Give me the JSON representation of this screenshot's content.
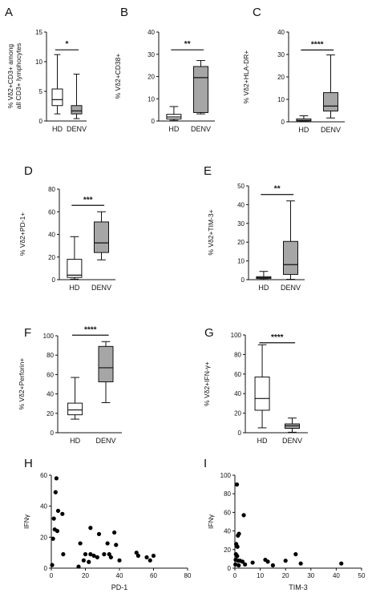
{
  "colors": {
    "hd_box": "#ffffff",
    "denv_box": "#a6a6a6",
    "stroke": "#111111",
    "point": "#000000"
  },
  "chart_data": [
    {
      "panel": "A",
      "type": "boxplot",
      "ylabel": "% Vδ2+CD3+ among all CD3+ lymphocytes",
      "ylim": [
        0,
        15
      ],
      "yticks": [
        0,
        5,
        10,
        15
      ],
      "categories": [
        "HD",
        "DENV"
      ],
      "boxes": [
        {
          "name": "HD",
          "min": 1.2,
          "q1": 2.6,
          "median": 3.6,
          "q3": 5.4,
          "max": 11.2
        },
        {
          "name": "DENV",
          "min": 0.4,
          "q1": 1.2,
          "median": 1.7,
          "q3": 2.6,
          "max": 7.9
        }
      ],
      "significance": "*"
    },
    {
      "panel": "B",
      "type": "boxplot",
      "ylabel": "% Vδ2+CD38+",
      "ylim": [
        0,
        40
      ],
      "yticks": [
        0,
        10,
        20,
        30,
        40
      ],
      "categories": [
        "HD",
        "DENV"
      ],
      "boxes": [
        {
          "name": "HD",
          "min": 0.3,
          "q1": 0.9,
          "median": 1.8,
          "q3": 3,
          "max": 6.5
        },
        {
          "name": "DENV",
          "min": 3.2,
          "q1": 3.8,
          "median": 19.5,
          "q3": 24.5,
          "max": 27.2
        }
      ],
      "significance": "**"
    },
    {
      "panel": "C",
      "type": "boxplot",
      "ylabel": "% Vδ2+HLA-DR+",
      "ylim": [
        0,
        40
      ],
      "yticks": [
        0,
        10,
        20,
        30,
        40
      ],
      "categories": [
        "HD",
        "DENV"
      ],
      "boxes": [
        {
          "name": "HD",
          "min": 0.2,
          "q1": 0.4,
          "median": 0.7,
          "q3": 1.3,
          "max": 2.7
        },
        {
          "name": "DENV",
          "min": 1.7,
          "q1": 4.8,
          "median": 7,
          "q3": 13,
          "max": 29.8
        }
      ],
      "significance": "****"
    },
    {
      "panel": "D",
      "type": "boxplot",
      "ylabel": "% Vδ2+PD-1+",
      "ylim": [
        0,
        80
      ],
      "yticks": [
        0,
        20,
        40,
        60,
        80
      ],
      "categories": [
        "HD",
        "DENV"
      ],
      "boxes": [
        {
          "name": "HD",
          "min": 0.5,
          "q1": 2,
          "median": 4,
          "q3": 18,
          "max": 38
        },
        {
          "name": "DENV",
          "min": 17.5,
          "q1": 24,
          "median": 32.5,
          "q3": 51,
          "max": 60
        }
      ],
      "significance": "***"
    },
    {
      "panel": "E",
      "type": "boxplot",
      "ylabel": "% Vδ2+TIM-3+",
      "ylim": [
        0,
        50
      ],
      "yticks": [
        0,
        10,
        20,
        30,
        40,
        50
      ],
      "categories": [
        "HD",
        "DENV"
      ],
      "boxes": [
        {
          "name": "HD",
          "min": 0.1,
          "q1": 0.6,
          "median": 1.1,
          "q3": 1.6,
          "max": 4.4
        },
        {
          "name": "DENV",
          "min": 0.2,
          "q1": 2.8,
          "median": 8,
          "q3": 20.4,
          "max": 42
        }
      ],
      "significance": "**"
    },
    {
      "panel": "F",
      "type": "boxplot",
      "ylabel": "% Vδ2+Perforin+",
      "ylim": [
        0,
        100
      ],
      "yticks": [
        0,
        20,
        40,
        60,
        80,
        100
      ],
      "categories": [
        "HD",
        "DENV"
      ],
      "boxes": [
        {
          "name": "HD",
          "min": 14,
          "q1": 18.5,
          "median": 23.5,
          "q3": 30.5,
          "max": 57
        },
        {
          "name": "DENV",
          "min": 31,
          "q1": 52.5,
          "median": 67,
          "q3": 89,
          "max": 94
        }
      ],
      "significance": "****"
    },
    {
      "panel": "G",
      "type": "boxplot",
      "ylabel": "% Vδ2+IFN-γ+",
      "ylim": [
        0,
        100
      ],
      "yticks": [
        0,
        20,
        40,
        60,
        80,
        100
      ],
      "categories": [
        "HD",
        "DENV"
      ],
      "boxes": [
        {
          "name": "HD",
          "min": 5,
          "q1": 23,
          "median": 35,
          "q3": 57,
          "max": 90
        },
        {
          "name": "DENV",
          "min": 0.5,
          "q1": 4.5,
          "median": 7,
          "q3": 9,
          "max": 15
        }
      ],
      "significance": "****"
    },
    {
      "panel": "H",
      "type": "scatter",
      "xlabel": "PD-1",
      "ylabel": "IFNγ",
      "xlim": [
        0,
        80
      ],
      "ylim": [
        0,
        60
      ],
      "xticks": [
        0,
        20,
        40,
        60,
        80
      ],
      "yticks": [
        0,
        20,
        40,
        60
      ],
      "points": [
        {
          "x": 1.5,
          "y": 32
        },
        {
          "x": 3,
          "y": 58
        },
        {
          "x": 2.5,
          "y": 49
        },
        {
          "x": 4,
          "y": 37
        },
        {
          "x": 6.5,
          "y": 35
        },
        {
          "x": 2,
          "y": 25
        },
        {
          "x": 1,
          "y": 19
        },
        {
          "x": 0.5,
          "y": 2
        },
        {
          "x": 3.5,
          "y": 24
        },
        {
          "x": 7,
          "y": 9
        },
        {
          "x": 17,
          "y": 16
        },
        {
          "x": 16,
          "y": 1
        },
        {
          "x": 19,
          "y": 5
        },
        {
          "x": 20,
          "y": 9
        },
        {
          "x": 22,
          "y": 4
        },
        {
          "x": 23,
          "y": 26
        },
        {
          "x": 23,
          "y": 9
        },
        {
          "x": 25,
          "y": 8
        },
        {
          "x": 27,
          "y": 7
        },
        {
          "x": 28,
          "y": 22
        },
        {
          "x": 31,
          "y": 9
        },
        {
          "x": 33,
          "y": 16
        },
        {
          "x": 34,
          "y": 9
        },
        {
          "x": 35,
          "y": 7
        },
        {
          "x": 37,
          "y": 23
        },
        {
          "x": 38,
          "y": 15
        },
        {
          "x": 40,
          "y": 5
        },
        {
          "x": 50,
          "y": 10
        },
        {
          "x": 51,
          "y": 8
        },
        {
          "x": 56,
          "y": 7
        },
        {
          "x": 58,
          "y": 5
        },
        {
          "x": 60,
          "y": 8
        }
      ]
    },
    {
      "panel": "I",
      "type": "scatter",
      "xlabel": "TIM-3",
      "ylabel": "IFNγ",
      "xlim": [
        0,
        50
      ],
      "ylim": [
        0,
        100
      ],
      "xticks": [
        0,
        10,
        20,
        30,
        40,
        50
      ],
      "yticks": [
        0,
        20,
        40,
        60,
        80,
        100
      ],
      "points": [
        {
          "x": 0.8,
          "y": 90
        },
        {
          "x": 3.5,
          "y": 57
        },
        {
          "x": 1.2,
          "y": 35
        },
        {
          "x": 1.6,
          "y": 37
        },
        {
          "x": 0.5,
          "y": 26
        },
        {
          "x": 0.7,
          "y": 24
        },
        {
          "x": 1,
          "y": 23
        },
        {
          "x": 0.4,
          "y": 15
        },
        {
          "x": 0.9,
          "y": 13
        },
        {
          "x": 0.3,
          "y": 9
        },
        {
          "x": 1.3,
          "y": 8
        },
        {
          "x": 2,
          "y": 8
        },
        {
          "x": 3,
          "y": 7
        },
        {
          "x": 4,
          "y": 4
        },
        {
          "x": 1.5,
          "y": 3
        },
        {
          "x": 7,
          "y": 6
        },
        {
          "x": 12,
          "y": 9
        },
        {
          "x": 13,
          "y": 7
        },
        {
          "x": 15,
          "y": 3
        },
        {
          "x": 20,
          "y": 8
        },
        {
          "x": 24,
          "y": 15
        },
        {
          "x": 26,
          "y": 5
        },
        {
          "x": 42,
          "y": 5
        },
        {
          "x": 0.2,
          "y": 4
        }
      ]
    }
  ]
}
